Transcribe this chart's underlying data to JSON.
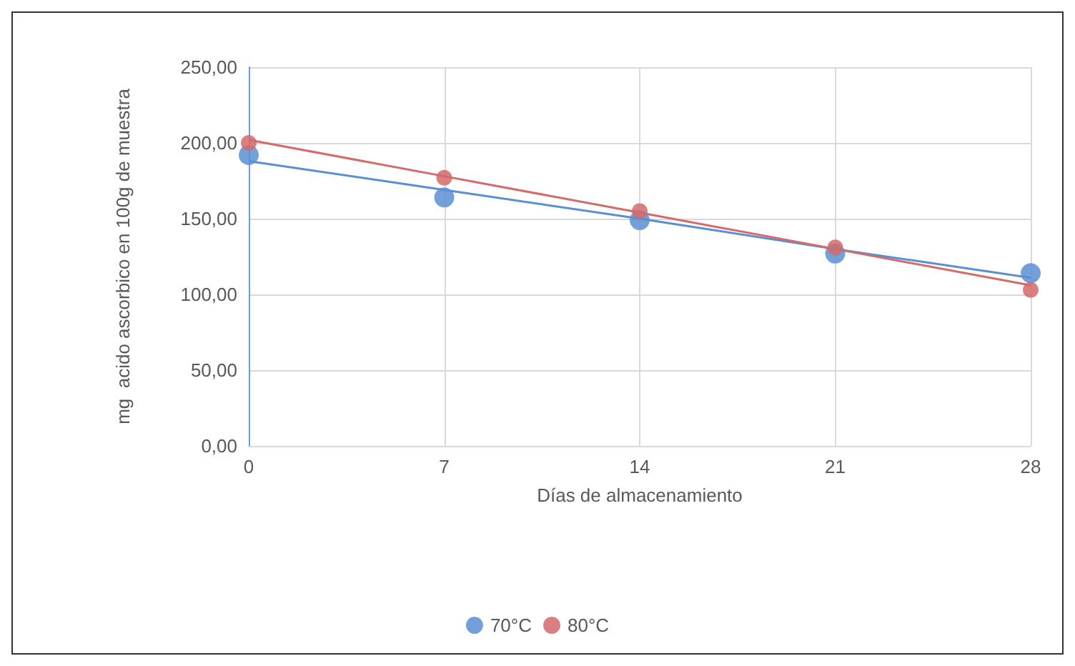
{
  "chart_data": {
    "type": "scatter",
    "xlabel": "Días de almacenamiento",
    "ylabel": "mg  acido ascorbico en 100g de muestra",
    "x": [
      0,
      7,
      14,
      21,
      28
    ],
    "series": [
      {
        "name": "70°C",
        "color": "#5b8fd4",
        "values": [
          192,
          164,
          149,
          127,
          114
        ]
      },
      {
        "name": "80°C",
        "color": "#d46a6a",
        "values": [
          200,
          177,
          155,
          131,
          103
        ]
      },
      {
        "type": "line",
        "marker": "none",
        "color": "#5b8fd4",
        "values": [
          188,
          169,
          150,
          130,
          111
        ]
      },
      {
        "type": "line",
        "marker": "none",
        "color": "#d46a6a",
        "values": [
          202,
          178,
          154,
          130,
          106
        ]
      }
    ],
    "xlim": [
      0,
      28
    ],
    "xticks": [
      0,
      7,
      14,
      21,
      28
    ],
    "ylim": [
      0,
      250
    ],
    "yticks": [
      {
        "value": 0,
        "label": "0,00"
      },
      {
        "value": 50,
        "label": "50,00"
      },
      {
        "value": 100,
        "label": "100,00"
      },
      {
        "value": 150,
        "label": "150,00"
      },
      {
        "value": 200,
        "label": "200,00"
      },
      {
        "value": 250,
        "label": "250,00"
      }
    ],
    "grid": true,
    "legend": "bottom",
    "marker": "circle",
    "line_style": "solid"
  }
}
